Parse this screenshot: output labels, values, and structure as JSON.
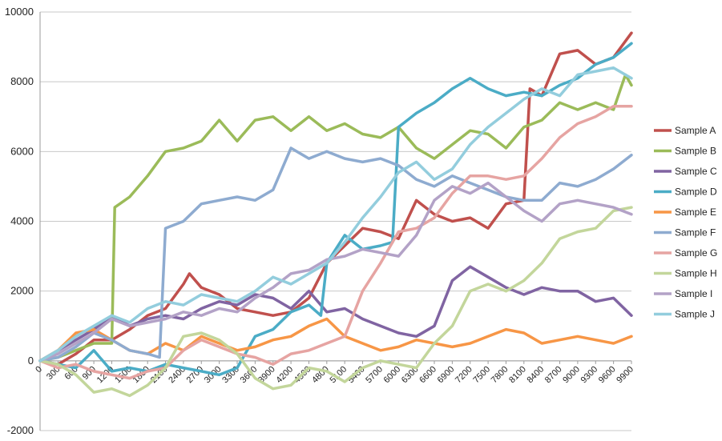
{
  "chart_data": {
    "type": "line",
    "title": "",
    "xlabel": "",
    "ylabel": "",
    "ylim": [
      -2000,
      10000
    ],
    "xlim": [
      0,
      9900
    ],
    "y_ticks": [
      "-2000",
      "0",
      "2000",
      "4000",
      "6000",
      "8000",
      "10000"
    ],
    "x_ticks": [
      "0",
      "300",
      "600",
      "900",
      "1200",
      "1500",
      "1800",
      "2100",
      "2400",
      "2700",
      "3000",
      "3300",
      "3600",
      "3900",
      "4200",
      "4500",
      "4800",
      "5100",
      "5400",
      "5700",
      "6000",
      "6300",
      "6600",
      "6900",
      "7200",
      "7500",
      "7800",
      "8100",
      "8400",
      "8700",
      "9000",
      "9300",
      "9600",
      "9900"
    ],
    "grid": "horizontal",
    "legend_position": "right",
    "series": [
      {
        "name": "Sample A",
        "color": "#c0504d",
        "x": [
          0,
          300,
          600,
          900,
          1200,
          1500,
          1800,
          2100,
          2400,
          2500,
          2700,
          3000,
          3300,
          3600,
          3900,
          4200,
          4500,
          4800,
          5100,
          5400,
          5700,
          6000,
          6300,
          6600,
          6900,
          7200,
          7500,
          7800,
          8100,
          8200,
          8400,
          8700,
          9000,
          9300,
          9600,
          9900
        ],
        "y": [
          0,
          -100,
          200,
          600,
          600,
          900,
          1300,
          1500,
          2200,
          2500,
          2100,
          1900,
          1500,
          1400,
          1300,
          1400,
          1800,
          2800,
          3300,
          3800,
          3700,
          3500,
          4600,
          4200,
          4000,
          4100,
          3800,
          4500,
          4600,
          7800,
          7600,
          8800,
          8900,
          8500,
          8700,
          9400
        ]
      },
      {
        "name": "Sample B",
        "color": "#9bbb59",
        "x": [
          0,
          300,
          600,
          900,
          1200,
          1250,
          1500,
          1800,
          2100,
          2400,
          2700,
          3000,
          3300,
          3600,
          3900,
          4200,
          4500,
          4800,
          5100,
          5400,
          5700,
          6000,
          6300,
          6600,
          6900,
          7200,
          7500,
          7800,
          8100,
          8400,
          8700,
          9000,
          9300,
          9600,
          9800,
          9900
        ],
        "y": [
          0,
          100,
          300,
          500,
          500,
          4400,
          4700,
          5300,
          6000,
          6100,
          6300,
          6900,
          6300,
          6900,
          7000,
          6600,
          7000,
          6600,
          6800,
          6500,
          6400,
          6700,
          6100,
          5800,
          6200,
          6600,
          6500,
          6100,
          6700,
          6900,
          7400,
          7200,
          7400,
          7200,
          8200,
          7900
        ]
      },
      {
        "name": "Sample C",
        "color": "#8064a2",
        "x": [
          0,
          300,
          600,
          900,
          1200,
          1500,
          1800,
          2100,
          2400,
          2700,
          3000,
          3300,
          3600,
          3900,
          4200,
          4500,
          4800,
          5100,
          5400,
          5700,
          6000,
          6300,
          6600,
          6900,
          7200,
          7500,
          7800,
          8100,
          8400,
          8700,
          9000,
          9300,
          9600,
          9900
        ],
        "y": [
          0,
          300,
          600,
          900,
          1300,
          1000,
          1200,
          1300,
          1200,
          1500,
          1700,
          1600,
          1900,
          1800,
          1500,
          2000,
          1400,
          1500,
          1200,
          1000,
          800,
          700,
          1000,
          2300,
          2700,
          2400,
          2100,
          1900,
          2100,
          2000,
          2000,
          1700,
          1800,
          1300
        ]
      },
      {
        "name": "Sample D",
        "color": "#4bacc6",
        "x": [
          0,
          300,
          600,
          900,
          1200,
          1500,
          1800,
          2100,
          2400,
          2700,
          3000,
          3300,
          3600,
          3900,
          4200,
          4500,
          4700,
          4800,
          5100,
          5400,
          5700,
          5900,
          6000,
          6300,
          6600,
          6900,
          7200,
          7500,
          7800,
          8100,
          8400,
          8700,
          9000,
          9300,
          9600,
          9900
        ],
        "y": [
          0,
          -100,
          -200,
          300,
          -300,
          -200,
          -300,
          -100,
          -200,
          -300,
          -400,
          -200,
          700,
          900,
          1400,
          1600,
          1300,
          2800,
          3600,
          3200,
          3300,
          3400,
          6700,
          7100,
          7400,
          7800,
          8100,
          7800,
          7600,
          7700,
          7600,
          7900,
          8100,
          8500,
          8700,
          9100
        ]
      },
      {
        "name": "Sample E",
        "color": "#f79646",
        "x": [
          0,
          300,
          600,
          900,
          1200,
          1500,
          1800,
          2100,
          2400,
          2700,
          3000,
          3300,
          3600,
          3900,
          4200,
          4500,
          4800,
          5100,
          5400,
          5700,
          6000,
          6300,
          6600,
          6900,
          7200,
          7500,
          7800,
          8100,
          8400,
          8700,
          9000,
          9300,
          9600,
          9900
        ],
        "y": [
          0,
          300,
          800,
          900,
          600,
          300,
          200,
          500,
          300,
          700,
          500,
          300,
          400,
          600,
          700,
          1000,
          1200,
          700,
          500,
          300,
          400,
          600,
          500,
          400,
          500,
          700,
          900,
          800,
          500,
          600,
          700,
          600,
          500,
          700
        ]
      },
      {
        "name": "Sample F",
        "color": "#8eabd0",
        "x": [
          0,
          300,
          600,
          900,
          1200,
          1500,
          1800,
          2000,
          2100,
          2400,
          2700,
          3000,
          3300,
          3600,
          3900,
          4200,
          4500,
          4800,
          5100,
          5400,
          5700,
          6000,
          6300,
          6600,
          6900,
          7200,
          7500,
          7800,
          8100,
          8400,
          8700,
          9000,
          9300,
          9600,
          9900
        ],
        "y": [
          0,
          100,
          400,
          800,
          600,
          300,
          200,
          100,
          3800,
          4000,
          4500,
          4600,
          4700,
          4600,
          4900,
          6100,
          5800,
          6000,
          5800,
          5700,
          5800,
          5600,
          5200,
          5000,
          5300,
          5100,
          4900,
          4700,
          4600,
          4600,
          5100,
          5000,
          5200,
          5500,
          5900
        ]
      },
      {
        "name": "Sample G",
        "color": "#e6a4a2",
        "x": [
          0,
          300,
          600,
          900,
          1200,
          1500,
          1800,
          2100,
          2400,
          2700,
          3000,
          3300,
          3600,
          3900,
          4200,
          4500,
          4800,
          5100,
          5400,
          5700,
          6000,
          6300,
          6600,
          6900,
          7200,
          7500,
          7800,
          8100,
          8400,
          8700,
          9000,
          9300,
          9600,
          9900
        ],
        "y": [
          0,
          -200,
          -100,
          -300,
          -400,
          -500,
          -300,
          -200,
          300,
          600,
          400,
          200,
          100,
          -100,
          200,
          300,
          500,
          700,
          2000,
          2800,
          3700,
          3800,
          4100,
          4800,
          5300,
          5300,
          5200,
          5300,
          5800,
          6400,
          6800,
          7000,
          7300,
          7300
        ]
      },
      {
        "name": "Sample H",
        "color": "#c3d69b",
        "x": [
          0,
          300,
          600,
          900,
          1200,
          1500,
          1800,
          2100,
          2400,
          2700,
          3000,
          3300,
          3600,
          3900,
          4200,
          4500,
          4800,
          5100,
          5400,
          5700,
          6000,
          6300,
          6600,
          6900,
          7200,
          7500,
          7800,
          8100,
          8400,
          8700,
          9000,
          9300,
          9600,
          9900
        ],
        "y": [
          0,
          -100,
          -400,
          -900,
          -800,
          -1000,
          -700,
          -200,
          700,
          800,
          600,
          200,
          -500,
          -800,
          -700,
          -200,
          -300,
          -600,
          -200,
          0,
          -100,
          -200,
          500,
          1000,
          2000,
          2200,
          2000,
          2300,
          2800,
          3500,
          3700,
          3800,
          4300,
          4400
        ]
      },
      {
        "name": "Sample I",
        "color": "#b3a2c7",
        "x": [
          0,
          300,
          600,
          900,
          1200,
          1500,
          1800,
          2100,
          2400,
          2700,
          3000,
          3300,
          3600,
          3900,
          4200,
          4500,
          4800,
          5100,
          5400,
          5700,
          6000,
          6300,
          6600,
          6900,
          7200,
          7500,
          7800,
          8100,
          8400,
          8700,
          9000,
          9300,
          9600,
          9900
        ],
        "y": [
          0,
          200,
          500,
          800,
          1200,
          1000,
          1100,
          1200,
          1400,
          1300,
          1500,
          1400,
          1800,
          2100,
          2500,
          2600,
          2900,
          3000,
          3200,
          3100,
          3000,
          3600,
          4600,
          5000,
          4800,
          5100,
          4700,
          4300,
          4000,
          4500,
          4600,
          4500,
          4400,
          4200
        ]
      },
      {
        "name": "Sample J",
        "color": "#93cddd",
        "x": [
          0,
          300,
          600,
          900,
          1200,
          1500,
          1800,
          2100,
          2400,
          2700,
          3000,
          3300,
          3600,
          3900,
          4200,
          4500,
          4800,
          5100,
          5400,
          5700,
          6000,
          6300,
          6600,
          6900,
          7200,
          7500,
          7800,
          8100,
          8400,
          8700,
          9000,
          9300,
          9600,
          9900
        ],
        "y": [
          0,
          300,
          700,
          1000,
          1300,
          1100,
          1500,
          1700,
          1600,
          1900,
          1800,
          1700,
          2000,
          2400,
          2200,
          2500,
          2800,
          3400,
          4100,
          4700,
          5400,
          5700,
          5200,
          5500,
          6200,
          6700,
          7100,
          7500,
          7800,
          7600,
          8200,
          8300,
          8400,
          8100
        ]
      }
    ]
  }
}
